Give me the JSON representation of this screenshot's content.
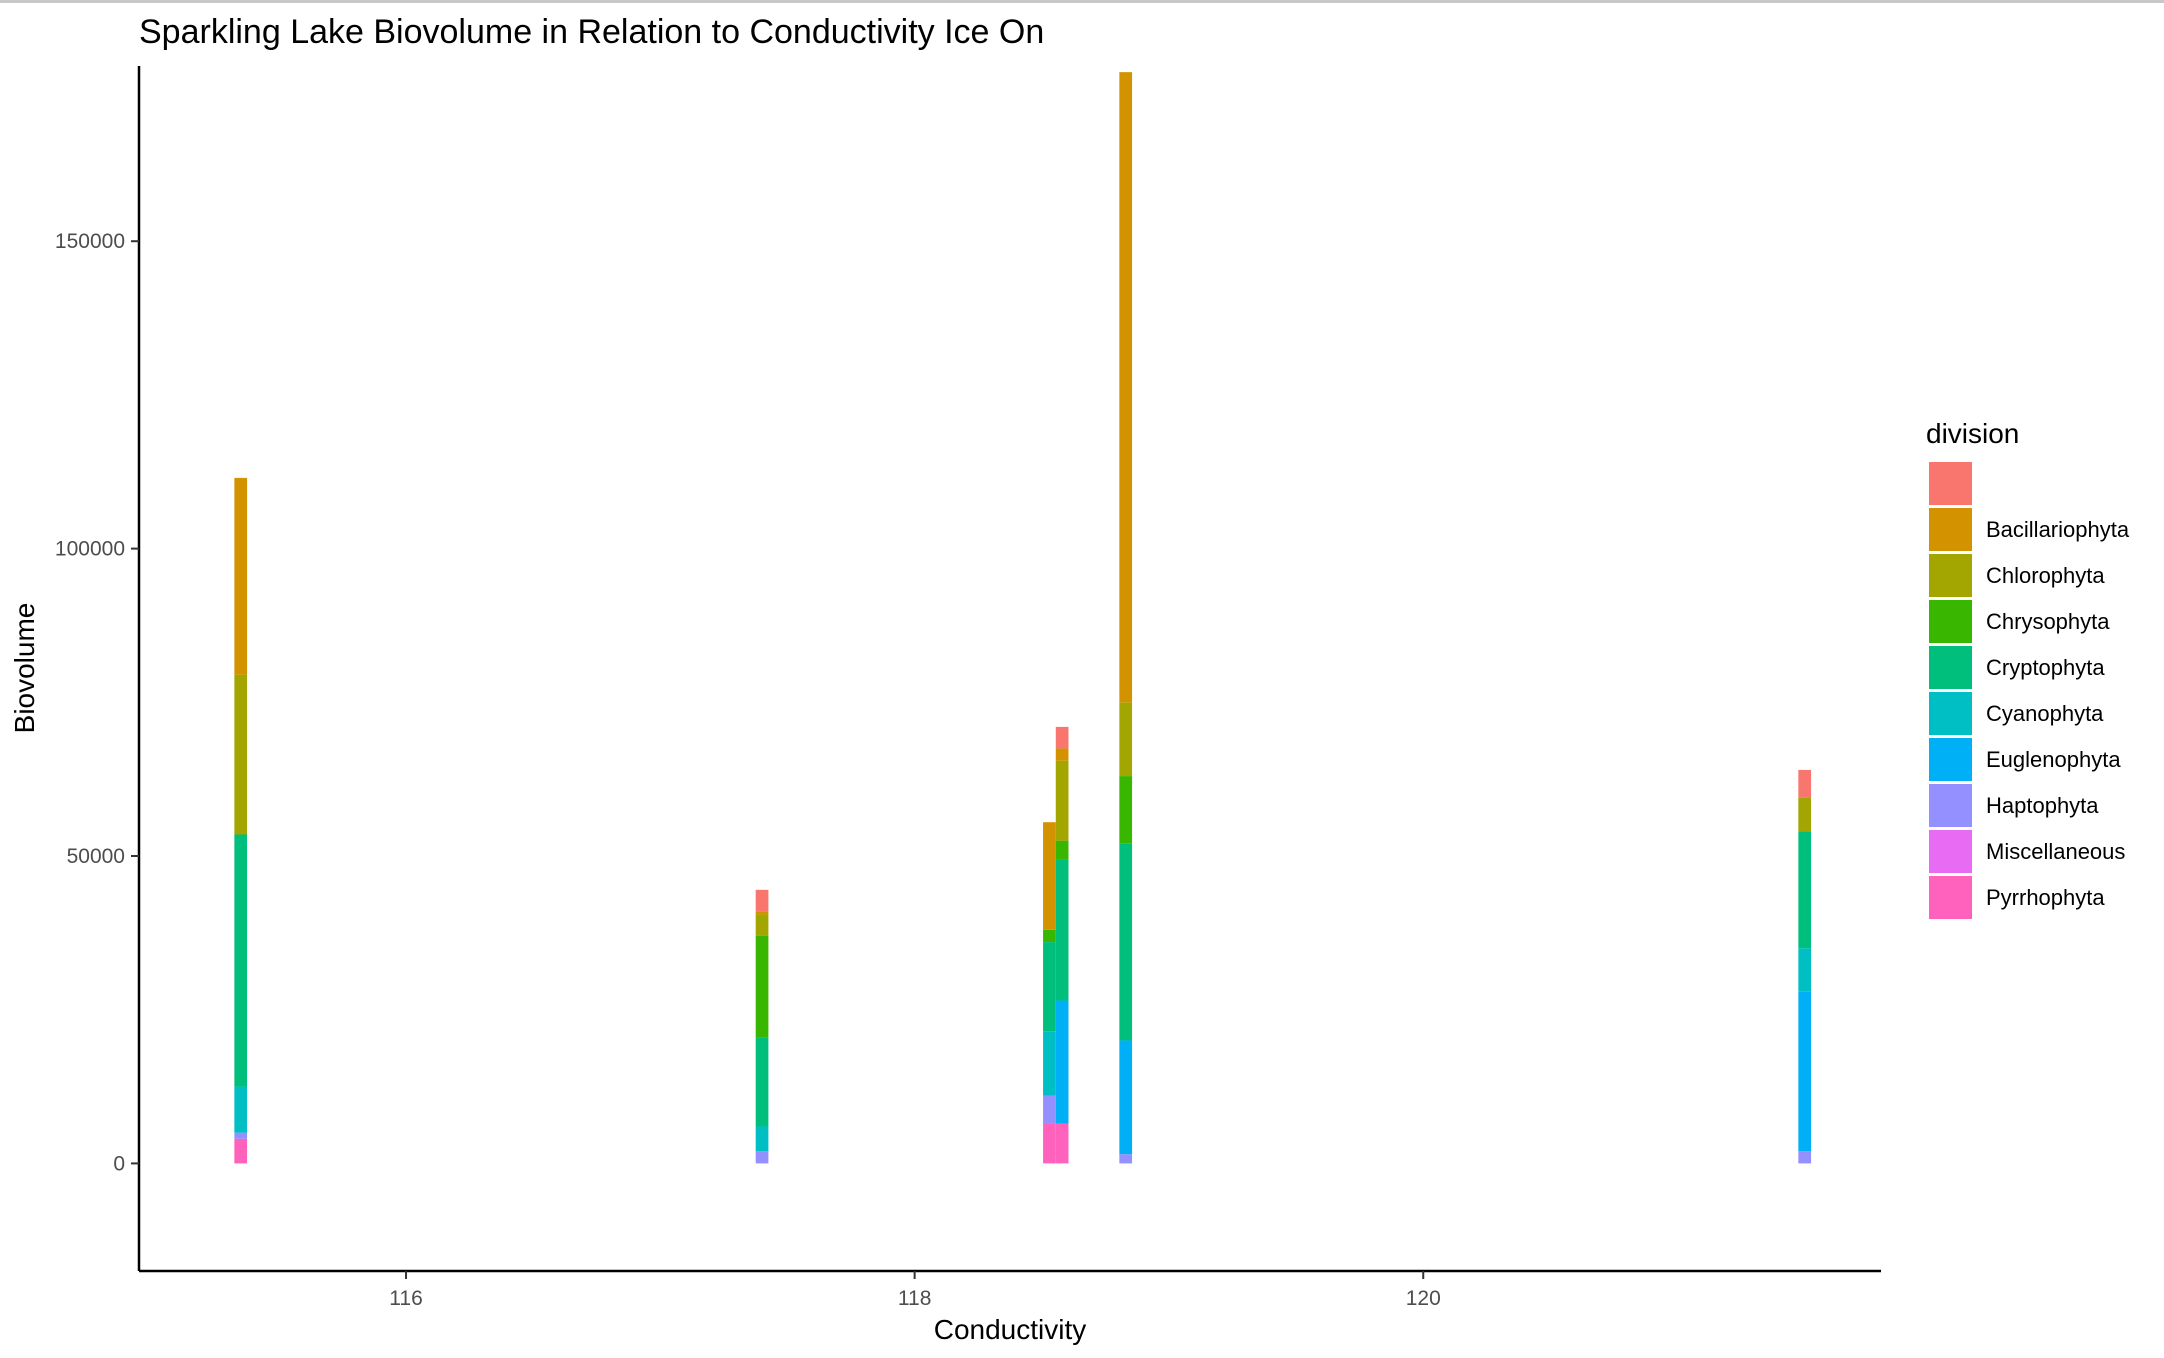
{
  "chart_data": {
    "type": "bar",
    "stacked": true,
    "title": "Sparkling Lake Biovolume in Relation to Conductivity Ice On",
    "xlabel": "Conductivity",
    "ylabel": "Biovolume",
    "xlim": [
      114.95,
      121.8
    ],
    "ylim": [
      -17500,
      178500
    ],
    "x_ticks": [
      116,
      118,
      120
    ],
    "y_ticks": [
      0,
      50000,
      100000,
      150000
    ],
    "y_tick_labels": [
      "0",
      "50000",
      "100000",
      "150000"
    ],
    "bar_width": 0.05,
    "legend": {
      "title": "division",
      "position": "right",
      "entries": [
        {
          "name": "",
          "color": "#F8766D"
        },
        {
          "name": "Bacillariophyta",
          "color": "#D39200"
        },
        {
          "name": "Chlorophyta",
          "color": "#A3A500"
        },
        {
          "name": "Chrysophyta",
          "color": "#39B600"
        },
        {
          "name": "Cryptophyta",
          "color": "#00BF7D"
        },
        {
          "name": "Cyanophyta",
          "color": "#00BFC4"
        },
        {
          "name": "Euglenophyta",
          "color": "#00B0F6"
        },
        {
          "name": "Haptophyta",
          "color": "#9590FF"
        },
        {
          "name": "Miscellaneous",
          "color": "#E76BF3"
        },
        {
          "name": "Pyrrhophyta",
          "color": "#FF62BC"
        }
      ]
    },
    "bars": [
      {
        "x": 115.35,
        "segments": [
          {
            "division": "Pyrrhophyta",
            "value": 4000
          },
          {
            "division": "Haptophyta",
            "value": 1000
          },
          {
            "division": "Cyanophyta",
            "value": 7500
          },
          {
            "division": "Cryptophyta",
            "value": 41000
          },
          {
            "division": "Chlorophyta",
            "value": 26000
          },
          {
            "division": "Bacillariophyta",
            "value": 32000
          }
        ]
      },
      {
        "x": 117.4,
        "segments": [
          {
            "division": "Haptophyta",
            "value": 2000
          },
          {
            "division": "Cyanophyta",
            "value": 4000
          },
          {
            "division": "Cryptophyta",
            "value": 14500
          },
          {
            "division": "Chrysophyta",
            "value": 16500
          },
          {
            "division": "Chlorophyta",
            "value": 3500
          },
          {
            "division": "Bacillariophyta",
            "value": 500
          },
          {
            "division": "",
            "value": 3500
          }
        ]
      },
      {
        "x": 118.53,
        "segments": [
          {
            "division": "Pyrrhophyta",
            "value": 6500
          },
          {
            "division": "Haptophyta",
            "value": 4500
          },
          {
            "division": "Cyanophyta",
            "value": 10500
          },
          {
            "division": "Cryptophyta",
            "value": 14500
          },
          {
            "division": "Chrysophyta",
            "value": 2000
          },
          {
            "division": "Bacillariophyta",
            "value": 17500
          }
        ]
      },
      {
        "x": 118.58,
        "segments": [
          {
            "division": "Pyrrhophyta",
            "value": 6500
          },
          {
            "division": "Euglenophyta",
            "value": 20000
          },
          {
            "division": "Cryptophyta",
            "value": 23000
          },
          {
            "division": "Chrysophyta",
            "value": 3000
          },
          {
            "division": "Chlorophyta",
            "value": 13000
          },
          {
            "division": "Bacillariophyta",
            "value": 2000
          },
          {
            "division": "",
            "value": 3500
          }
        ]
      },
      {
        "x": 118.83,
        "segments": [
          {
            "division": "Haptophyta",
            "value": 1500
          },
          {
            "division": "Euglenophyta",
            "value": 18500
          },
          {
            "division": "Cryptophyta",
            "value": 32000
          },
          {
            "division": "Chrysophyta",
            "value": 11000
          },
          {
            "division": "Chlorophyta",
            "value": 12000
          },
          {
            "division": "Bacillariophyta",
            "value": 102500
          }
        ]
      },
      {
        "x": 121.5,
        "segments": [
          {
            "division": "Haptophyta",
            "value": 2000
          },
          {
            "division": "Euglenophyta",
            "value": 26000
          },
          {
            "division": "Cyanophyta",
            "value": 7000
          },
          {
            "division": "Cryptophyta",
            "value": 19000
          },
          {
            "division": "Chlorophyta",
            "value": 5500
          },
          {
            "division": "",
            "value": 4500
          }
        ]
      }
    ]
  }
}
